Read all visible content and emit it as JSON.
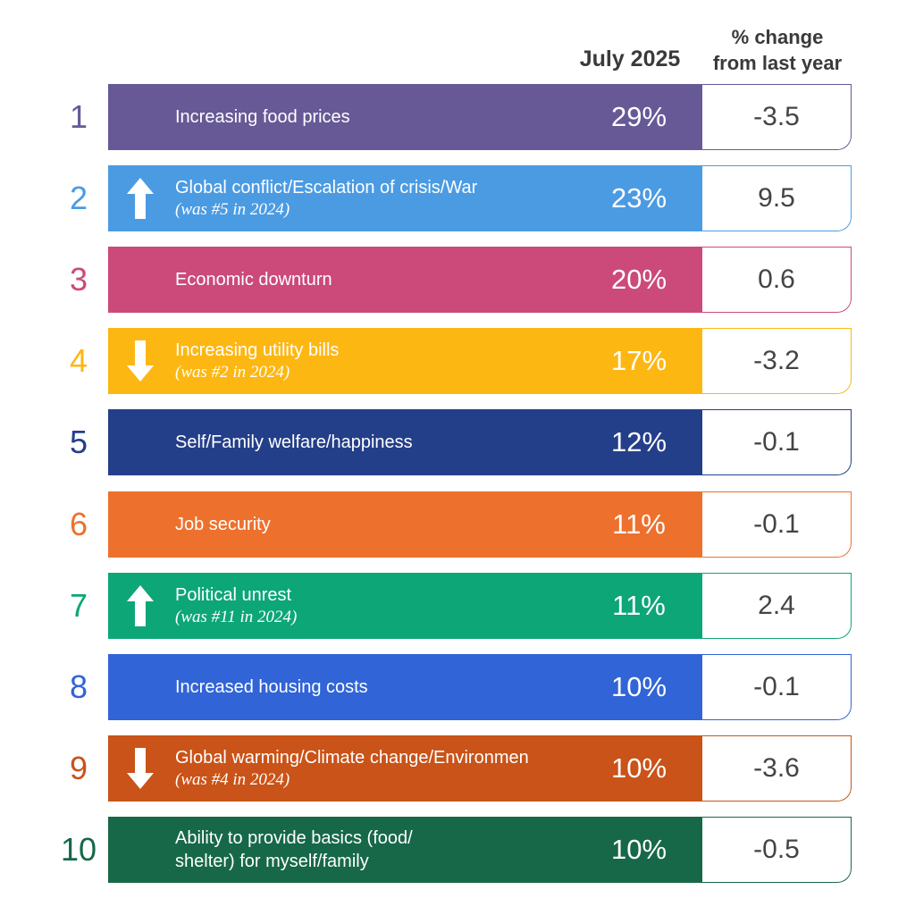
{
  "headers": {
    "current": "July 2025",
    "change_line1": "% change",
    "change_line2": "from last year"
  },
  "chart_data": {
    "type": "table",
    "columns": [
      "July 2025",
      "% change from last year"
    ],
    "rows": [
      {
        "rank": "1",
        "label": "Increasing food prices",
        "note": "",
        "trend": "",
        "value": "29%",
        "change": "-3.5",
        "color": "#675996"
      },
      {
        "rank": "2",
        "label": "Global conflict/Escalation of crisis/War",
        "note": "(was #5 in 2024)",
        "trend": "up",
        "value": "23%",
        "change": "9.5",
        "color": "#4b9be3"
      },
      {
        "rank": "3",
        "label": "Economic downturn",
        "note": "",
        "trend": "",
        "value": "20%",
        "change": "0.6",
        "color": "#cb4a7a"
      },
      {
        "rank": "4",
        "label": "Increasing utility bills",
        "note": "(was #2 in 2024)",
        "trend": "down",
        "value": "17%",
        "change": "-3.2",
        "color": "#fdb713"
      },
      {
        "rank": "5",
        "label": "Self/Family welfare/happiness",
        "note": "",
        "trend": "",
        "value": "12%",
        "change": "-0.1",
        "color": "#243f89"
      },
      {
        "rank": "6",
        "label": "Job security",
        "note": "",
        "trend": "",
        "value": "11%",
        "change": "-0.1",
        "color": "#ed712d"
      },
      {
        "rank": "7",
        "label": "Political unrest",
        "note": "(was #11 in 2024)",
        "trend": "up",
        "value": "11%",
        "change": "2.4",
        "color": "#0da677"
      },
      {
        "rank": "8",
        "label": "Increased housing costs",
        "note": "",
        "trend": "",
        "value": "10%",
        "change": "-0.1",
        "color": "#3164d6"
      },
      {
        "rank": "9",
        "label": "Global warming/Climate change/Environmen",
        "note": "(was #4 in 2024)",
        "trend": "down",
        "value": "10%",
        "change": "-3.6",
        "color": "#c95318"
      },
      {
        "rank": "10",
        "label": "Ability to provide basics (food/ shelter) for myself/family",
        "note": "",
        "trend": "",
        "value": "10%",
        "change": "-0.5",
        "color": "#166849"
      }
    ]
  }
}
